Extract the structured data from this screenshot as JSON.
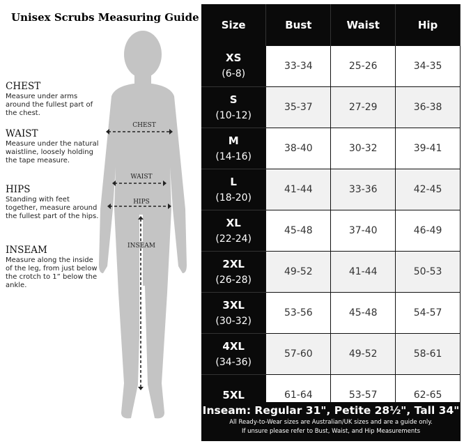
{
  "title": "Unisex Scrubs Measuring Guide",
  "guides": [
    {
      "heading": "CHEST",
      "text": "Measure under arms around the fullest part of the chest."
    },
    {
      "heading": "WAIST",
      "text": "Measure under the natural waistline, loosely holding the tape measure."
    },
    {
      "heading": "HIPS",
      "text": "Standing with feet together, measure around the fullest part of the hips."
    },
    {
      "heading": "INSEAM",
      "text": "Measure along the inside of the leg, from just below the crotch to 1” below the ankle."
    }
  ],
  "figure_labels": {
    "chest": "CHEST",
    "waist": "WAIST",
    "hips": "HIPS",
    "inseam": "INSEAM"
  },
  "table": {
    "headers": [
      "Size",
      "Bust",
      "Waist",
      "Hip"
    ],
    "rows": [
      {
        "size": "XS",
        "range": "(6-8)",
        "bust": "33-34",
        "waist": "25-26",
        "hip": "34-35"
      },
      {
        "size": "S",
        "range": "(10-12)",
        "bust": "35-37",
        "waist": "27-29",
        "hip": "36-38"
      },
      {
        "size": "M",
        "range": "(14-16)",
        "bust": "38-40",
        "waist": "30-32",
        "hip": "39-41"
      },
      {
        "size": "L",
        "range": "(18-20)",
        "bust": "41-44",
        "waist": "33-36",
        "hip": "42-45"
      },
      {
        "size": "XL",
        "range": "(22-24)",
        "bust": "45-48",
        "waist": "37-40",
        "hip": "46-49"
      },
      {
        "size": "2XL",
        "range": "(26-28)",
        "bust": "49-52",
        "waist": "41-44",
        "hip": "50-53"
      },
      {
        "size": "3XL",
        "range": "(30-32)",
        "bust": "53-56",
        "waist": "45-48",
        "hip": "54-57"
      },
      {
        "size": "4XL",
        "range": "(34-36)",
        "bust": "57-60",
        "waist": "49-52",
        "hip": "58-61"
      },
      {
        "size": "5XL",
        "range": "",
        "bust": "61-64",
        "waist": "53-57",
        "hip": "62-65"
      }
    ]
  },
  "footer": {
    "inseam": "Inseam: Regular 31\", Petite 28½\", Tall 34\"",
    "note1": "All Ready-to-Wear sizes are Australian/UK sizes and are a guide only.",
    "note2": "If unsure please refer to Bust, Waist, and Hip Measurements"
  }
}
